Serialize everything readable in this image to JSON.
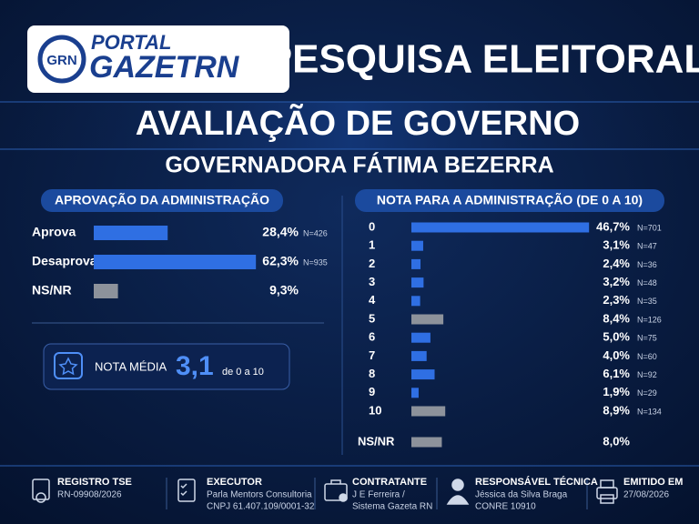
{
  "header": {
    "logo_badge": "GRN",
    "logo_top": "PORTAL",
    "logo_main": "GAZETRN",
    "title": "PESQUISA ELEITORAL",
    "subtitle": "AVALIAÇÃO DE GOVERNO",
    "subject": "GOVERNADORA FÁTIMA BEZERRA"
  },
  "chart_data": [
    {
      "type": "bar",
      "orientation": "horizontal",
      "title": "APROVAÇÃO DA ADMINISTRAÇÃO",
      "categories": [
        "Aprova",
        "Desaprova",
        "NS/NR"
      ],
      "values": [
        28.4,
        62.3,
        9.3
      ],
      "value_labels": [
        "28,4%",
        "62,3%",
        "9,3%"
      ],
      "n_labels": [
        "N=426",
        "N=935",
        null
      ],
      "colors": [
        "#2f6fe3",
        "#2f6fe3",
        "#8d929b"
      ]
    },
    {
      "type": "bar",
      "orientation": "horizontal",
      "title": "NOTA PARA A ADMINISTRAÇÃO (DE 0 A 10)",
      "categories": [
        "0",
        "1",
        "2",
        "3",
        "4",
        "5",
        "6",
        "7",
        "8",
        "9",
        "10",
        "NS/NR"
      ],
      "values": [
        46.7,
        3.1,
        2.4,
        3.2,
        2.3,
        8.4,
        5.0,
        4.0,
        6.1,
        1.9,
        8.9,
        8.0
      ],
      "value_labels": [
        "46,7%",
        "3,1%",
        "2,4%",
        "3,2%",
        "2,3%",
        "8,4%",
        "5,0%",
        "4,0%",
        "6,1%",
        "1,9%",
        "8,9%",
        "8,0%"
      ],
      "n_labels": [
        "N=701",
        "N=47",
        "N=36",
        "N=48",
        "N=35",
        "N=126",
        "N=75",
        "N=60",
        "N=92",
        "N=29",
        "N=134",
        null
      ],
      "colors": [
        "#2f6fe3",
        "#2f6fe3",
        "#2f6fe3",
        "#2f6fe3",
        "#2f6fe3",
        "#8d929b",
        "#2f6fe3",
        "#2f6fe3",
        "#2f6fe3",
        "#2f6fe3",
        "#8d929b",
        "#8d929b"
      ]
    }
  ],
  "nota_media": {
    "label": "NOTA MÉDIA",
    "value": "3,1",
    "scale": "de 0 a 10"
  },
  "footer": [
    {
      "title": "REGISTRO TSE",
      "lines": [
        "RN-09908/2026"
      ]
    },
    {
      "title": "EXECUTOR",
      "lines": [
        "Parla Mentors Consultoria",
        "CNPJ 61.407.109/0001-32"
      ]
    },
    {
      "title": "CONTRATANTE",
      "lines": [
        "J E Ferreira /",
        "Sistema Gazeta RN"
      ]
    },
    {
      "title": "RESPONSÁVEL TÉCNICA",
      "lines": [
        "Jéssica da Silva Braga",
        "CONRE 10910"
      ]
    },
    {
      "title": "EMITIDO EM",
      "lines": [
        "27/08/2026"
      ]
    }
  ]
}
